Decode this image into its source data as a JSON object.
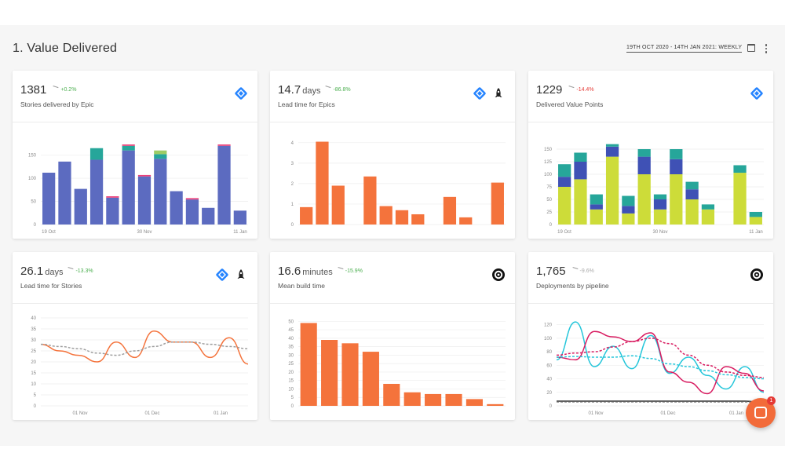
{
  "page": {
    "title": "1. Value Delivered",
    "date_range": "19TH OCT 2020 - 14TH JAN 2021: WEEKLY"
  },
  "colors": {
    "blue": "#5c6bc0",
    "navy": "#3f51b5",
    "teal": "#26a69a",
    "pink": "#ec407a",
    "lightgreen": "#9ccc65",
    "lime": "#cddc39",
    "orange": "#f4733c",
    "jira": "#2684ff",
    "cyan": "#26c6da",
    "crimson": "#d81b60",
    "dark": "#333333"
  },
  "cards": [
    {
      "value": "1381",
      "unit": "",
      "delta": "+0.2%",
      "subtitle": "Stories delivered by Epic",
      "icons": [
        "jira-icon"
      ]
    },
    {
      "value": "14.7",
      "unit": "days",
      "delta": "-86.8%",
      "subtitle": "Lead time for Epics",
      "icons": [
        "jira-icon",
        "rocket-icon"
      ]
    },
    {
      "value": "1229",
      "unit": "",
      "delta": "-14.4%",
      "subtitle": "Delivered Value Points",
      "icons": [
        "jira-icon"
      ]
    },
    {
      "value": "26.1",
      "unit": "days",
      "delta": "-13.3%",
      "subtitle": "Lead time for Stories",
      "icons": [
        "jira-icon",
        "rocket-icon"
      ]
    },
    {
      "value": "16.6",
      "unit": "minutes",
      "delta": "-15.9%",
      "subtitle": "Mean build time",
      "icons": [
        "circleci-icon"
      ]
    },
    {
      "value": "1,765",
      "unit": "",
      "delta": "-9.6%",
      "subtitle": "Deployments by pipeline",
      "icons": [
        "circleci-icon"
      ]
    }
  ],
  "chat": {
    "badge": "1"
  },
  "chart_data": [
    {
      "type": "bar",
      "stacked": true,
      "x_tick_labels": [
        "19 Oct",
        "30 Nov",
        "11 Jan"
      ],
      "y_ticks": [
        0,
        50,
        100,
        150
      ],
      "ylim": [
        0,
        190
      ],
      "series": [
        {
          "color": "#5c6bc0",
          "values": [
            112,
            136,
            77,
            140,
            58,
            160,
            104,
            142,
            72,
            54,
            36,
            170,
            30
          ]
        },
        {
          "color": "#26a69a",
          "values": [
            0,
            0,
            0,
            25,
            0,
            10,
            0,
            10,
            0,
            0,
            0,
            0,
            0
          ]
        },
        {
          "color": "#ec407a",
          "values": [
            0,
            0,
            0,
            0,
            3,
            3,
            3,
            0,
            0,
            3,
            0,
            3,
            0
          ]
        },
        {
          "color": "#9ccc65",
          "values": [
            0,
            0,
            0,
            0,
            0,
            0,
            0,
            8,
            0,
            0,
            0,
            0,
            0
          ]
        }
      ]
    },
    {
      "type": "bar",
      "y_ticks": [
        0,
        1,
        2,
        3,
        4
      ],
      "ylim": [
        0,
        4.3
      ],
      "values": [
        0.85,
        4.05,
        1.9,
        0,
        2.35,
        0.9,
        0.7,
        0.5,
        0,
        1.35,
        0.35,
        0,
        2.05
      ]
    },
    {
      "type": "bar",
      "stacked": true,
      "x_tick_labels": [
        "19 Oct",
        "30 Nov",
        "11 Jan"
      ],
      "y_ticks": [
        0,
        25,
        50,
        75,
        100,
        125,
        150
      ],
      "ylim": [
        0,
        175
      ],
      "series": [
        {
          "color": "#cddc39",
          "values": [
            75,
            90,
            30,
            135,
            22,
            100,
            30,
            100,
            50,
            30,
            0,
            103,
            15
          ]
        },
        {
          "color": "#3f51b5",
          "values": [
            20,
            35,
            10,
            20,
            15,
            35,
            20,
            30,
            20,
            0,
            0,
            0,
            0
          ]
        },
        {
          "color": "#26a69a",
          "values": [
            25,
            18,
            20,
            5,
            20,
            15,
            10,
            20,
            15,
            10,
            0,
            15,
            10
          ]
        }
      ]
    },
    {
      "type": "line",
      "x_tick_labels": [
        "01 Nov",
        "01 Dec",
        "01 Jan"
      ],
      "y_ticks": [
        0,
        5,
        10,
        15,
        20,
        25,
        30,
        35,
        40
      ],
      "ylim": [
        0,
        40
      ],
      "series": [
        {
          "style": "solid",
          "color": "#f4733c",
          "values": [
            28,
            25,
            23,
            20,
            29,
            22,
            34,
            29,
            29,
            22,
            31,
            19
          ]
        },
        {
          "style": "dashed",
          "color": "#9e9e9e",
          "values": [
            28,
            27,
            26,
            24,
            23,
            25,
            27,
            29,
            29,
            28,
            27,
            26
          ]
        }
      ]
    },
    {
      "type": "bar",
      "y_ticks": [
        0,
        5,
        10,
        15,
        20,
        25,
        30,
        35,
        40,
        45,
        50
      ],
      "ylim": [
        0,
        52
      ],
      "values": [
        49,
        39,
        37,
        32,
        13,
        8,
        7,
        7,
        4,
        1
      ]
    },
    {
      "type": "line",
      "x_tick_labels": [
        "01 Nov",
        "01 Dec",
        "01 Jan"
      ],
      "y_ticks": [
        0,
        20,
        40,
        60,
        80,
        100,
        120
      ],
      "ylim": [
        0,
        130
      ],
      "series": [
        {
          "style": "solid",
          "color": "#26c6da",
          "values": [
            68,
            124,
            58,
            88,
            55,
            104,
            48,
            72,
            45,
            25,
            58,
            20
          ]
        },
        {
          "style": "solid",
          "color": "#d81b60",
          "values": [
            72,
            68,
            110,
            102,
            95,
            108,
            50,
            35,
            18,
            58,
            48,
            22
          ]
        },
        {
          "style": "dashed",
          "color": "#26c6da",
          "values": [
            72,
            73,
            72,
            72,
            74,
            70,
            62,
            58,
            52,
            46,
            42,
            40
          ]
        },
        {
          "style": "dashed",
          "color": "#d81b60",
          "values": [
            75,
            78,
            80,
            87,
            95,
            100,
            92,
            75,
            60,
            50,
            45,
            42
          ]
        },
        {
          "style": "solid",
          "color": "#333333",
          "values": [
            7,
            7,
            7,
            7,
            7,
            7,
            7,
            7,
            7,
            7,
            7,
            5
          ]
        },
        {
          "style": "dashed",
          "color": "#666666",
          "values": [
            6,
            6,
            6,
            6,
            6,
            6,
            6,
            6,
            6,
            6,
            6,
            5
          ]
        }
      ]
    }
  ]
}
